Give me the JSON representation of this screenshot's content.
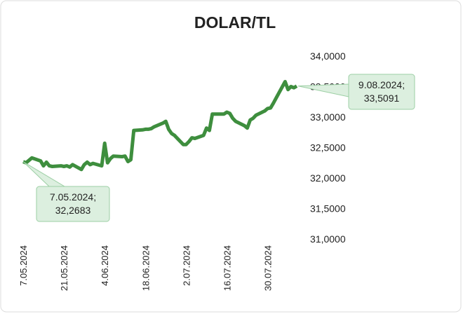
{
  "chart_data": {
    "type": "line",
    "title": "DOLAR/TL",
    "x": [
      "7.05.2024",
      "8.05.2024",
      "10.05.2024",
      "13.05.2024",
      "14.05.2024",
      "15.05.2024",
      "16.05.2024",
      "17.05.2024",
      "20.05.2024",
      "21.05.2024",
      "22.05.2024",
      "23.05.2024",
      "24.05.2024",
      "27.05.2024",
      "28.05.2024",
      "29.05.2024",
      "30.05.2024",
      "31.05.2024",
      "3.06.2024",
      "4.06.2024",
      "5.06.2024",
      "6.06.2024",
      "7.06.2024",
      "10.06.2024",
      "11.06.2024",
      "12.06.2024",
      "13.06.2024",
      "14.06.2024",
      "17.06.2024",
      "18.06.2024",
      "19.06.2024",
      "20.06.2024",
      "21.06.2024",
      "24.06.2024",
      "25.06.2024",
      "26.06.2024",
      "27.06.2024",
      "28.06.2024",
      "1.07.2024",
      "2.07.2024",
      "3.07.2024",
      "4.07.2024",
      "5.07.2024",
      "8.07.2024",
      "9.07.2024",
      "10.07.2024",
      "11.07.2024",
      "12.07.2024",
      "15.07.2024",
      "16.07.2024",
      "17.07.2024",
      "18.07.2024",
      "19.07.2024",
      "22.07.2024",
      "23.07.2024",
      "24.07.2024",
      "25.07.2024",
      "26.07.2024",
      "29.07.2024",
      "30.07.2024",
      "31.07.2024",
      "1.08.2024",
      "2.08.2024",
      "5.08.2024",
      "6.08.2024",
      "7.08.2024",
      "8.08.2024",
      "9.08.2024"
    ],
    "series": [
      {
        "name": "DOLAR/TL",
        "color": "#3e8e3e",
        "values": [
          32.2683,
          32.25,
          32.33,
          32.28,
          32.2,
          32.26,
          32.2,
          32.19,
          32.2,
          32.19,
          32.2,
          32.18,
          32.22,
          32.14,
          32.22,
          32.26,
          32.22,
          32.24,
          32.2,
          32.57,
          32.25,
          32.32,
          32.36,
          32.35,
          32.36,
          32.27,
          32.3,
          32.78,
          32.79,
          32.8,
          32.8,
          32.81,
          32.84,
          32.9,
          32.93,
          32.8,
          32.73,
          32.7,
          32.55,
          32.55,
          32.6,
          32.66,
          32.65,
          32.7,
          32.82,
          32.78,
          33.05,
          33.05,
          33.05,
          33.08,
          33.06,
          32.98,
          32.93,
          32.86,
          32.82,
          32.95,
          32.98,
          33.03,
          33.1,
          33.14,
          33.15,
          33.23,
          33.32,
          33.58,
          33.45,
          33.5,
          33.48,
          33.5091
        ]
      }
    ],
    "xlim": [
      "7.05.2024",
      "9.08.2024"
    ],
    "xticks": [
      "7.05.2024",
      "21.05.2024",
      "4.06.2024",
      "18.06.2024",
      "2.07.2024",
      "16.07.2024",
      "30.07.2024"
    ],
    "ylim": [
      31,
      34
    ],
    "yticks": [
      {
        "value": 31,
        "label": "31,0000"
      },
      {
        "value": 31.5,
        "label": "31,5000"
      },
      {
        "value": 32,
        "label": "32,0000"
      },
      {
        "value": 32.5,
        "label": "32,5000"
      },
      {
        "value": 33,
        "label": "33,0000"
      },
      {
        "value": 33.5,
        "label": "33,5000"
      },
      {
        "value": 34,
        "label": "34,0000"
      }
    ],
    "grid": false,
    "annotations": [
      {
        "lines": [
          "7.05.2024;",
          "32,2683"
        ]
      },
      {
        "lines": [
          "9.08.2024;",
          "33,5091"
        ]
      }
    ]
  }
}
